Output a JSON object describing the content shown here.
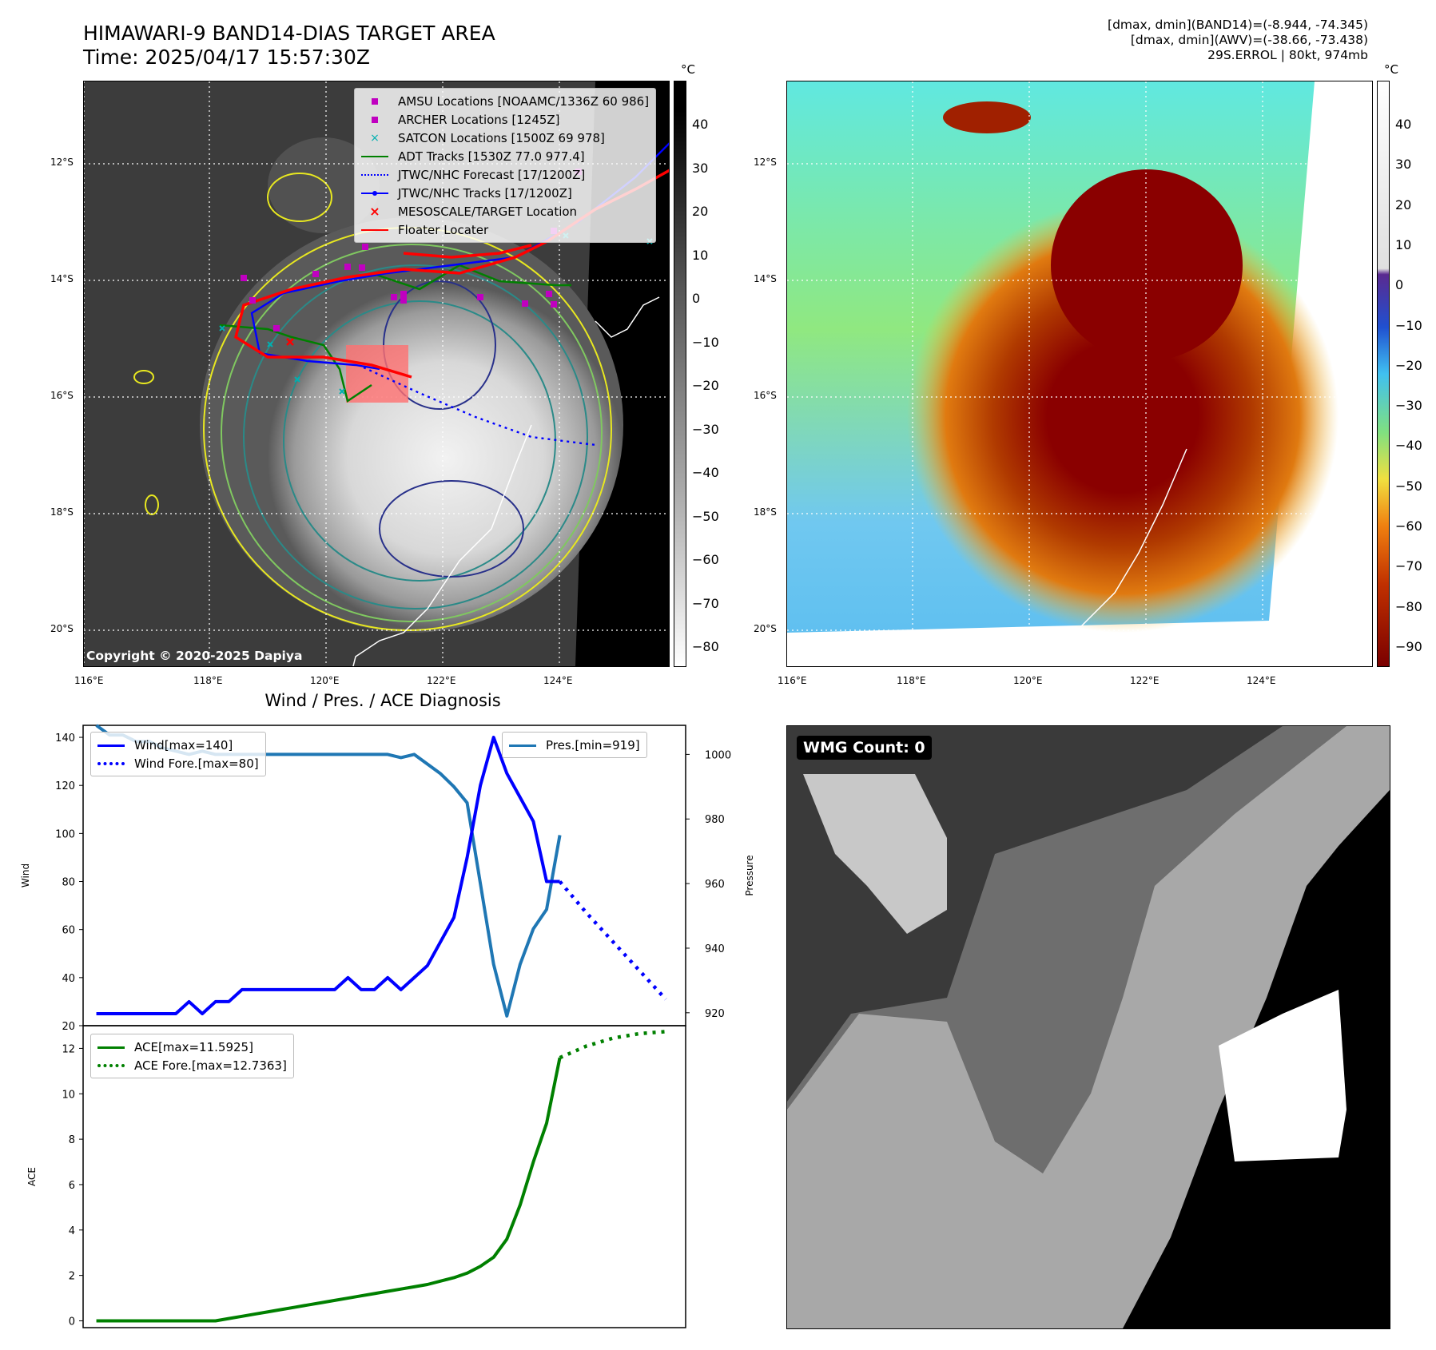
{
  "header": {
    "title_line1": "HIMAWARI-9 BAND14-DIAS TARGET AREA",
    "title_line2": "Time: 2025/04/17 15:57:30Z",
    "info_line1": "[dmax, dmin](BAND14)=(-8.944, -74.345)",
    "info_line2": "[dmax, dmin](AWV)=(-38.66, -73.438)",
    "info_line3": "29S.ERROL | 80kt, 974mb"
  },
  "map_axes": {
    "lat_labels": [
      "12°S",
      "14°S",
      "16°S",
      "18°S",
      "20°S"
    ],
    "lon_labels": [
      "116°E",
      "118°E",
      "120°E",
      "122°E",
      "124°E"
    ]
  },
  "left_map": {
    "copyright": "Copyright © 2020-2025 Dapiya",
    "colorbar_unit": "°C",
    "colorbar_ticks": [
      "40",
      "30",
      "20",
      "10",
      "0",
      "−10",
      "−20",
      "−30",
      "−40",
      "−50",
      "−60",
      "−70",
      "−80"
    ],
    "legend": [
      {
        "label": "AMSU Locations [NOAAMC/1336Z 60 986]",
        "marker": "square",
        "color": "#c000c0"
      },
      {
        "label": "ARCHER Locations [1245Z]",
        "marker": "square",
        "color": "#c000c0"
      },
      {
        "label": "SATCON Locations [1500Z 69 978]",
        "marker": "x",
        "color": "#00b0b0"
      },
      {
        "label": "ADT Tracks [1530Z 77.0 977.4]",
        "marker": "line",
        "color": "#008000"
      },
      {
        "label": "JTWC/NHC Forecast [17/1200Z]",
        "marker": "dotted",
        "color": "#0000ff"
      },
      {
        "label": "JTWC/NHC Tracks [17/1200Z]",
        "marker": "line-dot",
        "color": "#0000ff"
      },
      {
        "label": "MESOSCALE/TARGET Location",
        "marker": "x",
        "color": "#ff0000"
      },
      {
        "label": "Floater Locater",
        "marker": "line",
        "color": "#ff0000"
      }
    ]
  },
  "right_map": {
    "colorbar_unit": "°C",
    "colorbar_ticks": [
      "40",
      "30",
      "20",
      "10",
      "0",
      "−10",
      "−20",
      "−30",
      "−40",
      "−50",
      "−60",
      "−70",
      "−80",
      "−90"
    ]
  },
  "wmg": {
    "badge": "WMG Count: 0"
  },
  "chart_data": [
    {
      "type": "line",
      "title": "Wind / Pres. / ACE Diagnosis",
      "ylabel": "Wind",
      "y2label": "Pressure",
      "ylim": [
        20,
        145
      ],
      "y2lim": [
        916,
        1009
      ],
      "yticks": [
        20,
        40,
        60,
        80,
        100,
        120,
        140
      ],
      "y2ticks": [
        920,
        940,
        960,
        980,
        1000
      ],
      "series": [
        {
          "name": "Wind[max=140]",
          "axis": "left",
          "color": "#0000ff",
          "style": "solid",
          "x": [
            0,
            1,
            2,
            3,
            4,
            5,
            6,
            7,
            8,
            9,
            10,
            11,
            12,
            13,
            14,
            15,
            16,
            17,
            18,
            19,
            20,
            21,
            22,
            23,
            24,
            25,
            26,
            27,
            28,
            29,
            30,
            31,
            32,
            33,
            34,
            35
          ],
          "values": [
            25,
            25,
            25,
            25,
            25,
            25,
            25,
            30,
            25,
            30,
            30,
            35,
            35,
            35,
            35,
            35,
            35,
            35,
            35,
            40,
            35,
            35,
            40,
            35,
            40,
            45,
            55,
            65,
            90,
            120,
            140,
            125,
            115,
            105,
            80,
            80
          ]
        },
        {
          "name": "Wind Fore.[max=80]",
          "axis": "left",
          "color": "#0000ff",
          "style": "dotted",
          "x": [
            35,
            37,
            39,
            41,
            43
          ],
          "values": [
            80,
            67,
            55,
            43,
            31
          ]
        },
        {
          "name": "Pres.[min=919]",
          "axis": "right",
          "color": "#1f77b4",
          "style": "solid",
          "x": [
            0,
            1,
            2,
            3,
            4,
            5,
            6,
            7,
            8,
            9,
            10,
            11,
            12,
            13,
            14,
            15,
            16,
            17,
            18,
            19,
            20,
            21,
            22,
            23,
            24,
            25,
            26,
            27,
            28,
            29,
            30,
            31,
            32,
            33,
            34,
            35
          ],
          "values": [
            1009,
            1006,
            1006,
            1004,
            1004,
            1002,
            1001,
            1000,
            1001,
            1000,
            1000,
            1000,
            1000,
            1000,
            1000,
            1000,
            1000,
            1000,
            1000,
            1000,
            1000,
            1000,
            1000,
            999,
            1000,
            997,
            994,
            990,
            985,
            960,
            935,
            919,
            935,
            946,
            952,
            975
          ]
        }
      ]
    },
    {
      "type": "line",
      "ylabel": "ACE",
      "ylim": [
        -0.3,
        13.0
      ],
      "yticks": [
        0,
        2,
        4,
        6,
        8,
        10,
        12
      ],
      "series": [
        {
          "name": "ACE[max=11.5925]",
          "color": "#008000",
          "style": "solid",
          "x": [
            0,
            1,
            2,
            3,
            4,
            5,
            6,
            7,
            8,
            9,
            10,
            11,
            12,
            13,
            14,
            15,
            16,
            17,
            18,
            19,
            20,
            21,
            22,
            23,
            24,
            25,
            26,
            27,
            28,
            29,
            30,
            31,
            32,
            33,
            34,
            35
          ],
          "values": [
            0,
            0,
            0,
            0,
            0,
            0,
            0,
            0,
            0,
            0,
            0.1,
            0.2,
            0.3,
            0.4,
            0.5,
            0.6,
            0.7,
            0.8,
            0.9,
            1.0,
            1.1,
            1.2,
            1.3,
            1.4,
            1.5,
            1.6,
            1.75,
            1.9,
            2.1,
            2.4,
            2.8,
            3.6,
            5.1,
            7.0,
            8.7,
            11.59
          ]
        },
        {
          "name": "ACE Fore.[max=12.7363]",
          "color": "#008000",
          "style": "dotted",
          "x": [
            35,
            37,
            39,
            41,
            43
          ],
          "values": [
            11.59,
            12.1,
            12.45,
            12.65,
            12.74
          ]
        }
      ]
    }
  ]
}
